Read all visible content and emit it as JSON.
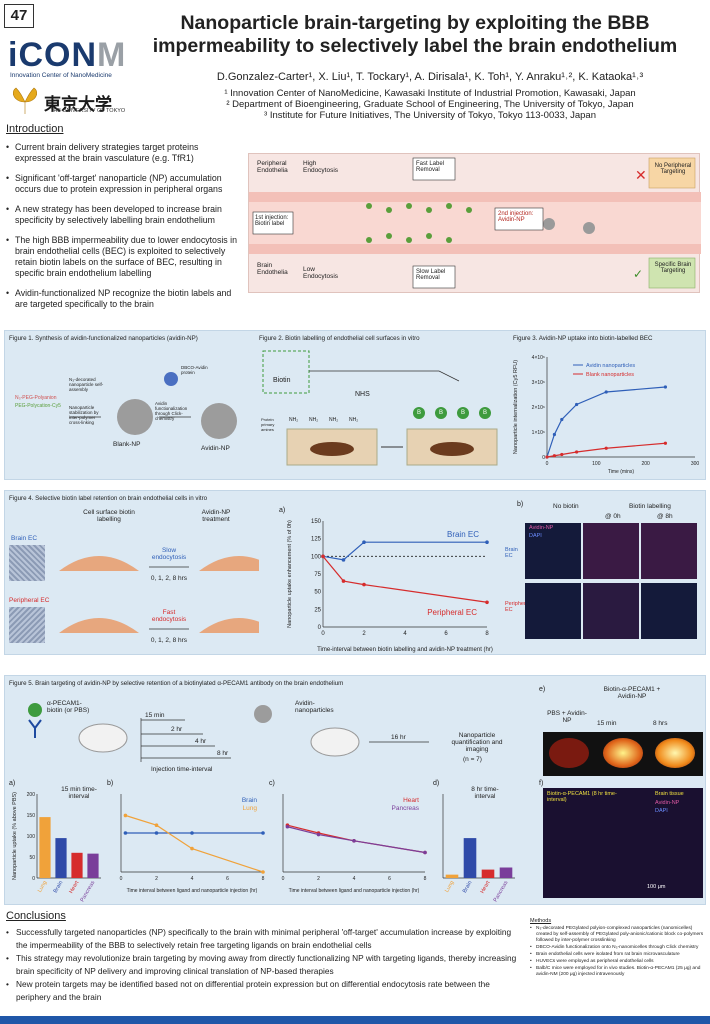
{
  "poster_number": "47",
  "title": {
    "line1": "Nanoparticle brain-targeting by exploiting the BBB",
    "line2": "impermeability to selectively label the brain endothelium"
  },
  "logos": {
    "icon_letters": "iCON",
    "icon_m": "M",
    "icon_sub": "Innovation Center of NanoMedicine",
    "tokyo": "東京大学",
    "tokyo_sub": "THE UNIVERSITY OF TOKYO"
  },
  "authors": "D.Gonzalez-Carter¹, X. Liu¹, T. Tockary¹, A. Dirisala¹, K. Toh¹, Y. Anraku¹˒², K. Kataoka¹˒³",
  "affiliations": [
    "¹ Innovation Center of NanoMedicine, Kawasaki Institute of Industrial Promotion, Kawasaki, Japan",
    "² Department of Bioengineering, Graduate School of Engineering, The University of Tokyo, Japan",
    "³ Institute for Future Initiatives, The University of Tokyo, Tokyo 113-0033, Japan"
  ],
  "intro": {
    "heading": "Introduction",
    "b1": "Current brain delivery strategies target proteins expressed at the brain vasculature (e.g. TfR1)",
    "b2": "Significant 'off-target' nanoparticle (NP) accumulation occurs due to protein expression in peripheral organs",
    "b3": "A new strategy has been developed to increase brain specificity by selectively labelling brain endothelium",
    "b4": "The high BBB impermeability due to lower endocytosis in brain endothelial cells (BEC) is exploited to selectively retain biotin labels on the surface of BEC, resulting in specific brain endothelium labelling",
    "b5": "Avidin-functionalized NP recognize the biotin labels and are targeted specifically to the brain"
  },
  "scheme": {
    "peripheral": "Peripheral Endothelia",
    "high": "High Endocytosis",
    "fast": "Fast Label Removal",
    "no_target": "No Peripheral Targeting",
    "inj1": "1st injection: Biotin label",
    "inj2": "2nd injection: Avidin-NP",
    "brain": "Brain Endothelia",
    "low": "Low Endocytosis",
    "slow": "Slow Label Removal",
    "specific": "Specific Brain Targeting"
  },
  "fig1": {
    "caption": "Figure 1. Synthesis of avidin-functionalized nanoparticles (avidin-NP)",
    "peg": "N₃-PEG-Polyanion",
    "pegc": "PEG-Polycation-Cy5",
    "step1": "N₃-decorated nanoparticle self-assembly",
    "step2": "Nanoparticle stabilization by inter-polymer cross-linking",
    "step3": "Avidin functionalization through Click-chemistry",
    "dbco": "DBCO-Avidin protein",
    "blank": "Blank-NP",
    "avidin": "Avidin-NP"
  },
  "fig2": {
    "caption": "Figure 2. Biotin labelling of endothelial cell surfaces in vitro",
    "biotin": "Biotin",
    "nhs": "NHS",
    "nh2": "NH₂",
    "protein": "Protein primary amines",
    "b": "B"
  },
  "fig3": {
    "caption": "Figure 3. Avidin-NP uptake into biotin-labelled BEC",
    "ylabel": "Nanoparticle internalization (Cy5 RFU)",
    "xlabel": "Time (mins)",
    "leg1": "Avidin nanoparticles",
    "leg2": "Blank nanoparticles"
  },
  "fig4": {
    "caption": "Figure 4. Selective biotin label retention on brain endothelial cells in vitro",
    "a": "a)",
    "b": "b)",
    "cell_surface": "Cell surface biotin labelling",
    "treat": "Avidin-NP treatment",
    "brain_ec": "Brain EC",
    "periph_ec": "Peripheral EC",
    "slow": "Slow endocytosis",
    "fast": "Fast endocytosis",
    "times": "0, 1, 2, 8 hrs",
    "ylabel": "Nanoparticle uptake enhancement (% of 0h)",
    "xlabel": "Time-interval between biotin labelling and avidin-NP treatment (hr)",
    "no_biotin": "No biotin",
    "biotin_lab": "Biotin labelling",
    "at0": "@ 0h",
    "at8": "@ 8h",
    "avidin_np": "Avidin-NP",
    "dapi": "DAPI"
  },
  "fig5": {
    "caption": "Figure 5. Brain targeting of avidin-NP by selective retention of a biotinylated α-PECAM1 antibody on the brain endothelium",
    "anti": "α-PECAM1-biotin (or PBS)",
    "t15": "15 min",
    "t2": "2 hr",
    "t4": "4 hr",
    "t8": "8 hr",
    "inj_int": "Injection time-interval",
    "avnp": "Avidin-nanoparticles",
    "t16": "16 hr",
    "quant": "Nanoparticle quantification and imaging",
    "n": "(n = 7)",
    "a": "a)",
    "b": "b)",
    "c": "c)",
    "d": "d)",
    "e": "e)",
    "f": "f)",
    "ylabel": "Nanoparticle uptake (% above PBS)",
    "t15int": "15 min time-interval",
    "t8int": "8 hr time-interval",
    "brain": "Brain",
    "lung": "Lung",
    "heart": "Heart",
    "pancreas": "Pancreas",
    "xlabel": "Time interval between ligand and nanoparticle injection (hr)",
    "e_top": "Biotin-α-PECAM1 + Avidin-NP",
    "e_pbs": "PBS + Avidin-NP",
    "e15": "15 min",
    "e8": "8 hrs",
    "f1": "Biotin-α-PECAM1 (8 hr time-interval)",
    "f2": "Brain tissue",
    "f3": "Avidin-NP",
    "f4": "DAPI",
    "scale": "100 μm"
  },
  "conclusions": {
    "heading": "Conclusions",
    "c1": "Successfully targeted nanoparticles (NP) specifically to the brain with minimal peripheral 'off-target' accumulation increase by exploiting the impermeability of the BBB to selectively retain free targeting ligands on brain endothelial cells",
    "c2": "This strategy may revolutionize brain targeting by moving away from directly functionalizing NP with targeting ligands, thereby increasing brain specificity of NP delivery and improving clinical translation of NP-based therapies",
    "c3": "New protein targets may be identified based not on differential protein expression but on differential endocytosis rate between the periphery and the brain"
  },
  "methods": {
    "heading": "Methods",
    "m1": "N₃-decorated PEGylated polyion-complexed nanoparticles (nanomicelles) created by self-assembly of PEGylated poly-anionic/cationic block co-polymers followed by inter-polymer crosslinking",
    "m2": "DBCO-Avidin functionalization onto N₃-nanomicelles through Click chemistry",
    "m3": "Brain endothelial cells were isolated from rat brain microvasculature",
    "m4": "HUVECs were employed as peripheral endothelial cells",
    "m5": "Balb/C mice were employed for in vivo studies. Biotin-α-PECAM1 (25 μg) and avidin-NM (200 μg) injected intravenously"
  },
  "chart_data": [
    {
      "type": "line",
      "title": "",
      "xlabel": "Time (mins)",
      "ylabel": "Nanoparticle internalization (Cy5 RFU)",
      "xlim": [
        0,
        300
      ],
      "ylim": [
        0,
        4000000
      ],
      "x_ticks": [
        0,
        100,
        200,
        300
      ],
      "y_ticks": [
        "0",
        "1×10⁶",
        "2×10⁶",
        "3×10⁶",
        "4×10⁶"
      ],
      "series": [
        {
          "name": "Avidin nanoparticles",
          "color": "#2f5fb8",
          "x": [
            0,
            15,
            30,
            60,
            120,
            240
          ],
          "y": [
            0,
            900000,
            1500000,
            2100000,
            2600000,
            2800000
          ]
        },
        {
          "name": "Blank nanoparticles",
          "color": "#d62c2c",
          "x": [
            0,
            15,
            30,
            60,
            120,
            240
          ],
          "y": [
            0,
            50000,
            100000,
            200000,
            350000,
            550000
          ]
        }
      ]
    },
    {
      "type": "line",
      "title": "",
      "xlabel": "Time-interval between biotin labelling and avidin-NP treatment (hr)",
      "ylabel": "Nanoparticle uptake enhancement (% of 0h)",
      "xlim": [
        0,
        8
      ],
      "ylim": [
        0,
        150
      ],
      "x_ticks": [
        0,
        2,
        4,
        6,
        8
      ],
      "y_ticks": [
        0,
        25,
        50,
        75,
        100,
        125,
        150
      ],
      "series": [
        {
          "name": "Brain EC",
          "color": "#2f5fb8",
          "x": [
            0,
            1,
            2,
            8
          ],
          "y": [
            100,
            95,
            120,
            120
          ]
        },
        {
          "name": "Peripheral EC",
          "color": "#d62c2c",
          "x": [
            0,
            1,
            2,
            8
          ],
          "y": [
            100,
            65,
            60,
            35
          ]
        }
      ]
    },
    {
      "type": "bar",
      "title": "",
      "ylabel": "Nanoparticle uptake (% above PBS)",
      "categories": [
        "Lung",
        "Brain",
        "Heart",
        "Pancreas"
      ],
      "values": [
        145,
        95,
        60,
        58
      ],
      "colors": [
        "#f0a23a",
        "#2f4aa8",
        "#d62c2c",
        "#7a3e9a"
      ],
      "ylim": [
        0,
        200
      ]
    },
    {
      "type": "line",
      "title": "",
      "xlabel": "Time interval between ligand and nanoparticle injection (hr)",
      "xlim": [
        0,
        8
      ],
      "series": [
        {
          "name": "Brain",
          "color": "#2f5fb8",
          "x": [
            0.25,
            2,
            4,
            8
          ],
          "y": [
            100,
            100,
            100,
            100
          ]
        },
        {
          "name": "Lung",
          "color": "#f0a23a",
          "x": [
            0.25,
            2,
            4,
            8
          ],
          "y": [
            145,
            120,
            60,
            0
          ]
        }
      ]
    },
    {
      "type": "line",
      "title": "",
      "xlabel": "Time interval between ligand and nanoparticle injection (hr)",
      "xlim": [
        0,
        8
      ],
      "series": [
        {
          "name": "Heart",
          "color": "#d62c2c",
          "x": [
            0.25,
            2,
            4,
            8
          ],
          "y": [
            60,
            50,
            40,
            25
          ]
        },
        {
          "name": "Pancreas",
          "color": "#7a3e9a",
          "x": [
            0.25,
            2,
            4,
            8
          ],
          "y": [
            58,
            48,
            40,
            25
          ]
        }
      ]
    },
    {
      "type": "bar",
      "title": "",
      "categories": [
        "Lung",
        "Brain",
        "Heart",
        "Pancreas"
      ],
      "values": [
        8,
        95,
        20,
        25
      ],
      "colors": [
        "#f0a23a",
        "#2f4aa8",
        "#d62c2c",
        "#7a3e9a"
      ],
      "ylim": [
        0,
        200
      ]
    }
  ]
}
